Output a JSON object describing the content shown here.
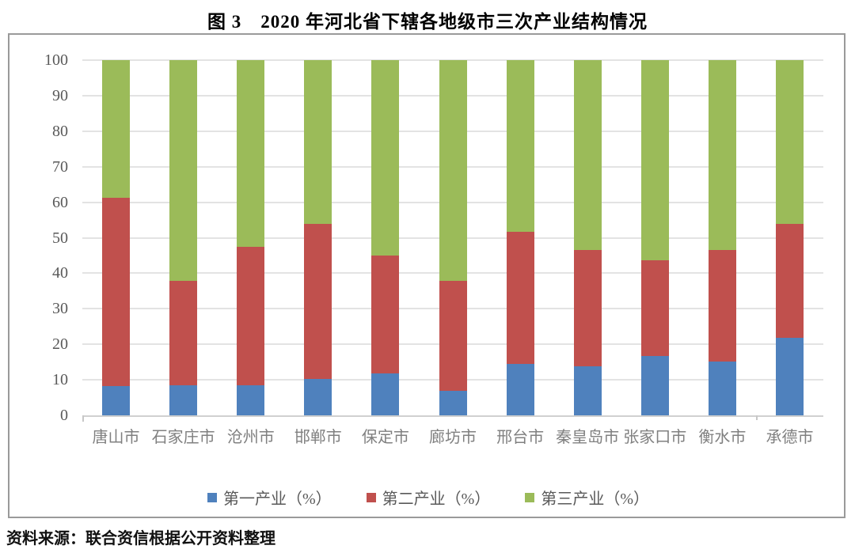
{
  "title": "图 3　2020 年河北省下辖各地级市三次产业结构情况",
  "source": "资料来源：联合资信根据公开资料整理",
  "colors": {
    "primary": "#4F81BD",
    "secondary": "#C0504D",
    "tertiary": "#9BBB59",
    "gridline": "#E3E3E3",
    "axis": "#D0D0D0",
    "y_label": "#595959",
    "x_label": "#808080"
  },
  "chart_data": {
    "type": "bar",
    "stacked": true,
    "percent_stacked": true,
    "title": "图 3　2020 年河北省下辖各地级市三次产业结构情况",
    "categories": [
      "唐山市",
      "石家庄市",
      "沧州市",
      "邯郸市",
      "保定市",
      "廊坊市",
      "邢台市",
      "秦皇岛市",
      "张家口市",
      "衡水市",
      "承德市"
    ],
    "series": [
      {
        "name": "第一产业（%）",
        "color": "#4F81BD",
        "values": [
          8.2,
          8.5,
          8.4,
          10.3,
          11.8,
          6.8,
          14.4,
          13.9,
          16.8,
          15.2,
          21.9
        ]
      },
      {
        "name": "第二产业（%）",
        "color": "#C0504D",
        "values": [
          53.1,
          29.3,
          39.1,
          43.5,
          33.1,
          31.0,
          37.3,
          32.6,
          26.8,
          31.3,
          31.9
        ]
      },
      {
        "name": "第三产业（%）",
        "color": "#9BBB59",
        "values": [
          38.7,
          62.2,
          52.5,
          46.2,
          55.1,
          62.2,
          48.3,
          53.5,
          56.4,
          53.5,
          46.2
        ]
      }
    ],
    "xlabel": "",
    "ylabel": "",
    "ylim": [
      0,
      100
    ],
    "ytick_step": 10,
    "grid": true,
    "legend_position": "bottom"
  }
}
